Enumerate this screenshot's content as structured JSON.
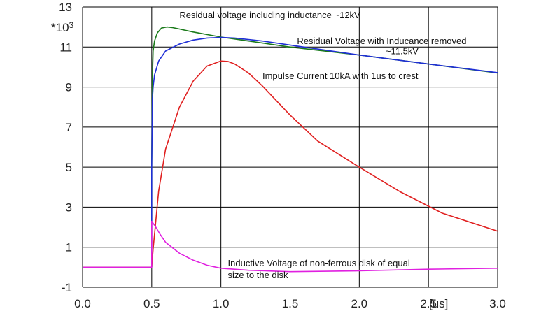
{
  "chart_data": {
    "type": "line",
    "title": "",
    "xlabel": "",
    "ylabel": "",
    "xlim": [
      0,
      3
    ],
    "ylim": [
      -1,
      13
    ],
    "grid": true,
    "y_multiplier_label": "*10",
    "y_multiplier_exp": "3",
    "x_unit_label": "[us]",
    "x_ticks": [
      "0.0",
      "0.5",
      "1.0",
      "1.5",
      "2.0",
      "2.5",
      "3.0"
    ],
    "x_tick_values": [
      0,
      0.5,
      1,
      1.5,
      2,
      2.5,
      3
    ],
    "y_ticks": [
      "13",
      "11",
      "9",
      "7",
      "5",
      "3",
      "1",
      "-1"
    ],
    "y_tick_values": [
      13,
      11,
      9,
      7,
      5,
      3,
      1,
      -1
    ],
    "series": [
      {
        "color": "#1a7a1a",
        "x": [
          0,
          0.5,
          0.5,
          0.505,
          0.51,
          0.52,
          0.54,
          0.57,
          0.61,
          0.65,
          0.7,
          0.8,
          1.0,
          1.2,
          1.5,
          2.0,
          2.5,
          3.0
        ],
        "y": [
          0,
          0,
          5,
          9.5,
          10.8,
          11.3,
          11.7,
          11.95,
          12.0,
          11.97,
          11.9,
          11.75,
          11.5,
          11.3,
          11.0,
          10.6,
          10.15,
          9.7
        ]
      },
      {
        "color": "#1f2fd6",
        "x": [
          0,
          0.5,
          0.5,
          0.505,
          0.51,
          0.52,
          0.55,
          0.6,
          0.7,
          0.8,
          0.9,
          1.0,
          1.1,
          1.3,
          1.6,
          2.0,
          2.5,
          3.0
        ],
        "y": [
          0,
          0,
          5,
          8.4,
          9.0,
          9.6,
          10.3,
          10.8,
          11.15,
          11.35,
          11.45,
          11.48,
          11.45,
          11.3,
          11.0,
          10.6,
          10.15,
          9.72
        ]
      },
      {
        "color": "#e02020",
        "x": [
          0,
          0.5,
          0.51,
          0.55,
          0.6,
          0.7,
          0.8,
          0.9,
          1.0,
          1.05,
          1.1,
          1.2,
          1.3,
          1.5,
          1.7,
          2.0,
          2.3,
          2.6,
          3.0
        ],
        "y": [
          0,
          0,
          0.9,
          3.8,
          5.9,
          8.0,
          9.3,
          10.05,
          10.3,
          10.28,
          10.15,
          9.7,
          9.05,
          7.6,
          6.3,
          5.0,
          3.75,
          2.7,
          1.8
        ]
      },
      {
        "color": "#e020e0",
        "x": [
          0,
          0.5,
          0.5,
          0.53,
          0.56,
          0.6,
          0.7,
          0.8,
          0.9,
          1.0,
          1.2,
          1.5,
          2.0,
          2.5,
          3.0
        ],
        "y": [
          0,
          0,
          2.3,
          2.0,
          1.65,
          1.25,
          0.7,
          0.35,
          0.1,
          -0.05,
          -0.15,
          -0.22,
          -0.18,
          -0.1,
          -0.05
        ]
      }
    ],
    "annotations": [
      {
        "text": "Residual  voltage including inductance  ~12kV",
        "x": 0.7,
        "y": 12.45
      },
      {
        "text": "Residual Voltage with Inducance removed",
        "x": 1.55,
        "y": 11.15
      },
      {
        "text": "~11.5kV",
        "x": 2.19,
        "y": 10.65
      },
      {
        "text": "Impulse Current 10kA with 1us to crest",
        "x": 1.3,
        "y": 9.4
      },
      {
        "text": "Inductive Voltage of  non-ferrous disk of equal",
        "x": 1.05,
        "y": 0.05
      },
      {
        "text": "size to the disk",
        "x": 1.05,
        "y": -0.55
      }
    ]
  }
}
